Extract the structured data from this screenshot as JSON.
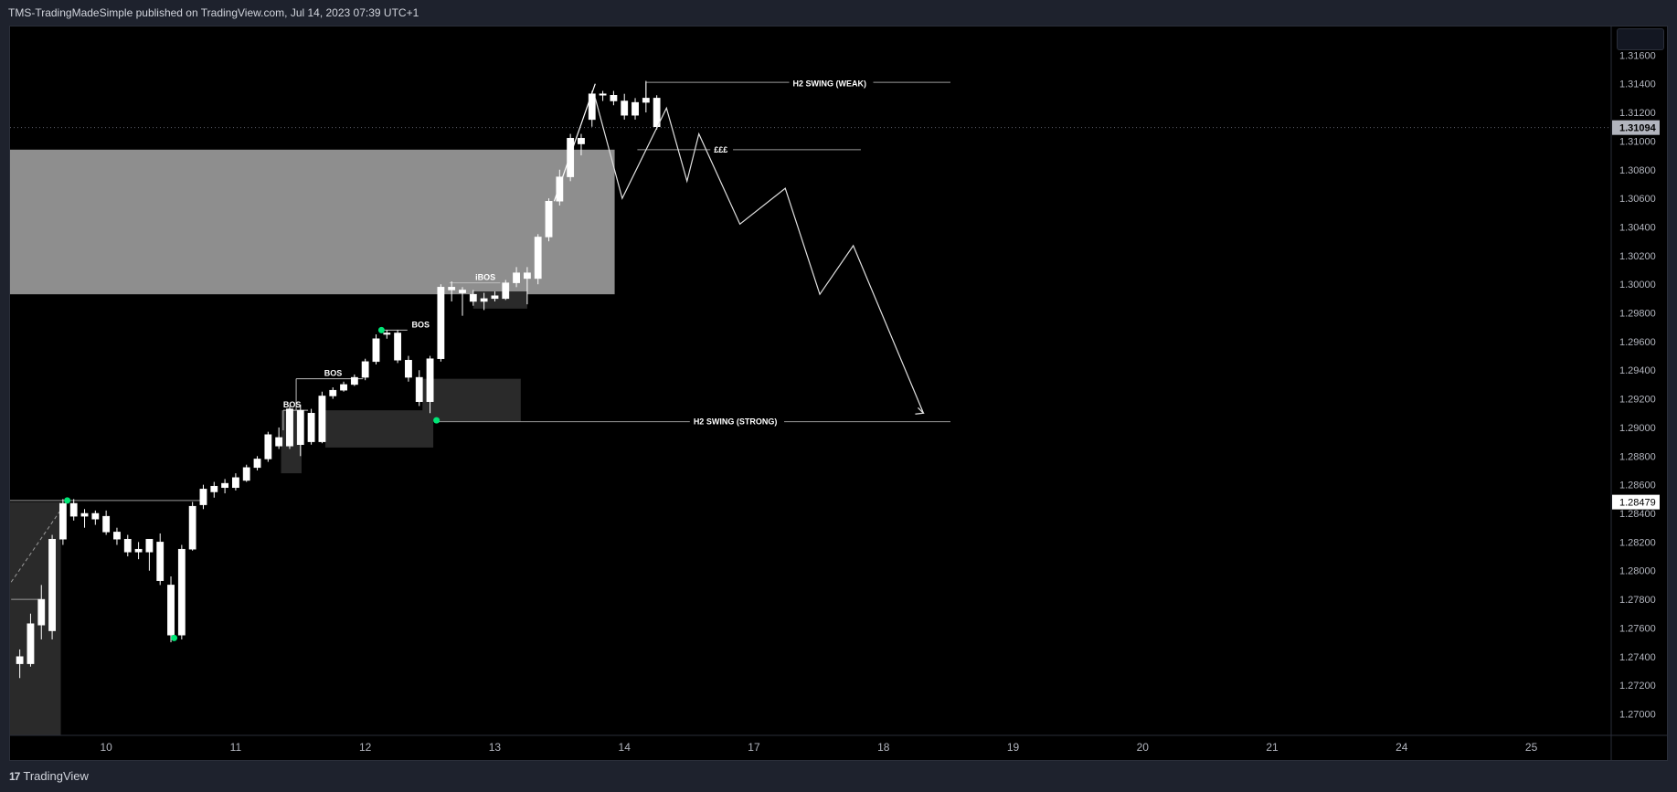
{
  "header": {
    "title": "TMS-TradingMadeSimple published on TradingView.com, Jul 14, 2023 07:39 UTC+1"
  },
  "footer": {
    "brand": "TradingView",
    "logo_icon": "tradingview-logo-icon"
  },
  "colors": {
    "background": "#000000",
    "frame": "#1e222d",
    "candle": "#ffffff",
    "zone_light": "#8e8e8e",
    "zone_dark": "#2a2a2a",
    "swing_point": "#00e676",
    "axis_text": "#b2b5be"
  },
  "chart_data": {
    "type": "candlestick",
    "title": "",
    "xlabel": "",
    "ylabel": "",
    "ylim": [
      1.2685,
      1.318
    ],
    "y_ticks": [
      "1.27000",
      "1.27200",
      "1.27400",
      "1.27600",
      "1.27800",
      "1.28000",
      "1.28200",
      "1.28400",
      "1.28600",
      "1.28800",
      "1.29000",
      "1.29200",
      "1.29400",
      "1.29600",
      "1.29800",
      "1.30000",
      "1.30200",
      "1.30400",
      "1.30600",
      "1.30800",
      "1.31000",
      "1.31200",
      "1.31400",
      "1.31600"
    ],
    "x_ticks": [
      {
        "label": "10",
        "index": 8
      },
      {
        "label": "11",
        "index": 20
      },
      {
        "label": "12",
        "index": 32
      },
      {
        "label": "13",
        "index": 44
      },
      {
        "label": "14",
        "index": 56
      },
      {
        "label": "17",
        "index": 68
      },
      {
        "label": "18",
        "index": 80
      },
      {
        "label": "19",
        "index": 92
      },
      {
        "label": "20",
        "index": 104
      },
      {
        "label": "21",
        "index": 116
      },
      {
        "label": "24",
        "index": 128
      },
      {
        "label": "25",
        "index": 140
      }
    ],
    "x_range": [
      -0.9,
      147.4
    ],
    "current_price": "1.31094",
    "marked_price": "1.28479",
    "candles": [
      [
        1.2735,
        1.2745,
        1.2725,
        1.274
      ],
      [
        1.2735,
        1.277,
        1.2733,
        1.2763
      ],
      [
        1.2762,
        1.279,
        1.2752,
        1.278
      ],
      [
        1.2758,
        1.2825,
        1.2752,
        1.2822
      ],
      [
        1.2822,
        1.285,
        1.2818,
        1.2847
      ],
      [
        1.2847,
        1.285,
        1.2835,
        1.2838
      ],
      [
        1.2838,
        1.2843,
        1.283,
        1.284
      ],
      [
        1.284,
        1.2842,
        1.2832,
        1.2836
      ],
      [
        1.2838,
        1.2842,
        1.2825,
        1.2827
      ],
      [
        1.2827,
        1.283,
        1.2818,
        1.2822
      ],
      [
        1.2822,
        1.2825,
        1.281,
        1.2813
      ],
      [
        1.2813,
        1.282,
        1.2808,
        1.2815
      ],
      [
        1.2813,
        1.2822,
        1.28,
        1.2822
      ],
      [
        1.282,
        1.2826,
        1.279,
        1.2793
      ],
      [
        1.279,
        1.2796,
        1.275,
        1.2755
      ],
      [
        1.2755,
        1.2818,
        1.2752,
        1.2815
      ],
      [
        1.2815,
        1.2848,
        1.2814,
        1.2845
      ],
      [
        1.2846,
        1.286,
        1.2843,
        1.2857
      ],
      [
        1.2855,
        1.2862,
        1.2851,
        1.2859
      ],
      [
        1.2858,
        1.2864,
        1.2854,
        1.2861
      ],
      [
        1.2858,
        1.2868,
        1.2856,
        1.2865
      ],
      [
        1.2863,
        1.2874,
        1.2862,
        1.2872
      ],
      [
        1.2872,
        1.288,
        1.287,
        1.2878
      ],
      [
        1.2878,
        1.2897,
        1.2876,
        1.2895
      ],
      [
        1.2893,
        1.29,
        1.2885,
        1.2887
      ],
      [
        1.2887,
        1.2915,
        1.2885,
        1.2913
      ],
      [
        1.2888,
        1.2916,
        1.288,
        1.2912
      ],
      [
        1.291,
        1.2913,
        1.2888,
        1.289
      ],
      [
        1.289,
        1.2925,
        1.2889,
        1.2922
      ],
      [
        1.2922,
        1.2928,
        1.292,
        1.2926
      ],
      [
        1.2926,
        1.2932,
        1.2925,
        1.293
      ],
      [
        1.293,
        1.2937,
        1.2929,
        1.2935
      ],
      [
        1.2935,
        1.2948,
        1.2933,
        1.2946
      ],
      [
        1.2946,
        1.2965,
        1.2944,
        1.2962
      ],
      [
        1.2965,
        1.2968,
        1.2962,
        1.2966
      ],
      [
        1.2966,
        1.2968,
        1.2945,
        1.2947
      ],
      [
        1.2947,
        1.295,
        1.2932,
        1.2935
      ],
      [
        1.2935,
        1.294,
        1.2915,
        1.2918
      ],
      [
        1.2918,
        1.295,
        1.291,
        1.2948
      ],
      [
        1.2948,
        1.3,
        1.2946,
        1.2998
      ],
      [
        1.2998,
        1.3002,
        1.2988,
        1.2996
      ],
      [
        1.2996,
        1.2998,
        1.2978,
        1.2994
      ],
      [
        1.2993,
        1.2996,
        1.2985,
        1.2988
      ],
      [
        1.2988,
        1.2994,
        1.2982,
        1.299
      ],
      [
        1.299,
        1.2995,
        1.2988,
        1.2992
      ],
      [
        1.299,
        1.3003,
        1.2989,
        1.3001
      ],
      [
        1.3001,
        1.3012,
        1.2998,
        1.3008
      ],
      [
        1.3008,
        1.3012,
        1.2986,
        1.3004
      ],
      [
        1.3004,
        1.3035,
        1.3,
        1.3033
      ],
      [
        1.3033,
        1.306,
        1.303,
        1.3058
      ],
      [
        1.3058,
        1.308,
        1.3055,
        1.3075
      ],
      [
        1.3075,
        1.3105,
        1.3072,
        1.3102
      ],
      [
        1.3102,
        1.3105,
        1.309,
        1.3098
      ],
      [
        1.3115,
        1.3135,
        1.311,
        1.3133
      ],
      [
        1.3133,
        1.3135,
        1.3128,
        1.3132
      ],
      [
        1.3132,
        1.3135,
        1.3125,
        1.3128
      ],
      [
        1.3128,
        1.3133,
        1.3115,
        1.3118
      ],
      [
        1.3118,
        1.313,
        1.3115,
        1.3127
      ],
      [
        1.3127,
        1.3142,
        1.312,
        1.313
      ],
      [
        1.313,
        1.3132,
        1.3108,
        1.311
      ]
    ],
    "zones": [
      {
        "x0": -0.9,
        "x1": 55.1,
        "y0": 1.2993,
        "y1": 1.3094,
        "color": "#8e8e8e"
      },
      {
        "x0": -0.9,
        "x1": 3.8,
        "y0": 1.2685,
        "y1": 1.2848,
        "color": "#2a2a2a"
      },
      {
        "x0": 24.2,
        "x1": 26.1,
        "y0": 1.2868,
        "y1": 1.2912,
        "color": "#2a2a2a"
      },
      {
        "x0": 28.3,
        "x1": 38.3,
        "y0": 1.2886,
        "y1": 1.2912,
        "color": "#2a2a2a"
      },
      {
        "x0": 37.3,
        "x1": 46.4,
        "y0": 1.2904,
        "y1": 1.2934,
        "color": "#2a2a2a"
      },
      {
        "x0": 42.0,
        "x1": 47.0,
        "y0": 1.2983,
        "y1": 1.2995,
        "color": "#2a2a2a"
      }
    ],
    "swing_points": [
      {
        "x": 4.4,
        "y": 1.2849
      },
      {
        "x": 14.3,
        "y": 1.2753
      },
      {
        "x": 33.5,
        "y": 1.2968
      },
      {
        "x": 38.6,
        "y": 1.2905
      }
    ],
    "annotations": [
      {
        "text": "BOS",
        "x": 24.4,
        "y": 1.2912
      },
      {
        "text": "BOS",
        "x": 28.2,
        "y": 1.2934
      },
      {
        "text": "BOS",
        "x": 36.3,
        "y": 1.2968
      },
      {
        "text": "iBOS",
        "x": 42.2,
        "y": 1.3001
      },
      {
        "text": "H2 SWING (WEAK)",
        "x": 71.6,
        "y": 1.314
      },
      {
        "text": "£££",
        "x": 64.3,
        "y": 1.3094
      },
      {
        "text": "H2 SWING (STRONG)",
        "x": 62.4,
        "y": 1.2904
      }
    ],
    "levels": [
      {
        "x0": 58.0,
        "x1": 86.2,
        "y": 1.3141
      },
      {
        "x0": 57.2,
        "x1": 77.9,
        "y": 1.3094
      },
      {
        "x0": 38.6,
        "x1": 86.2,
        "y": 1.2904
      },
      {
        "x0": -0.9,
        "x1": 17.1,
        "y": 1.2849
      }
    ],
    "projection": [
      [
        53.3,
        1.313
      ],
      [
        55.8,
        1.306
      ],
      [
        59.9,
        1.3123
      ],
      [
        61.8,
        1.3072
      ],
      [
        62.9,
        1.3105
      ],
      [
        66.7,
        1.3042
      ],
      [
        70.9,
        1.3067
      ],
      [
        74.1,
        1.2993
      ],
      [
        77.2,
        1.3027
      ],
      [
        83.7,
        1.291
      ]
    ]
  }
}
